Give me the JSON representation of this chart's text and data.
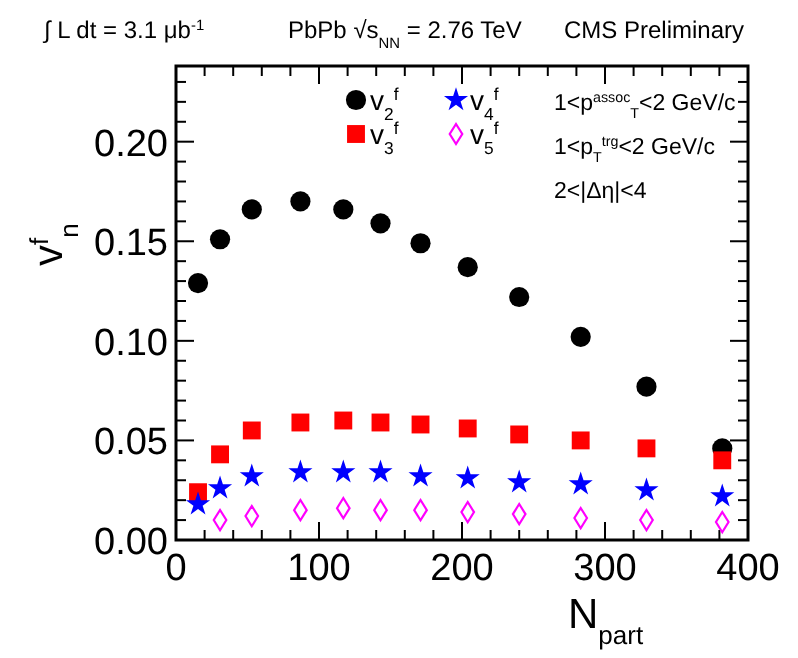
{
  "chart_data": {
    "type": "scatter",
    "xlabel": "N$_{part}$",
    "ylabel": "v$^{f}$$_{n}$",
    "x": [
      15.4,
      30.8,
      53,
      87,
      117,
      143,
      171,
      204,
      240,
      283,
      329,
      382
    ],
    "series": [
      {
        "name": "v$_{2}$$^{f}$",
        "color": "#000000",
        "marker": "circle",
        "values": [
          0.129,
          0.151,
          0.166,
          0.17,
          0.166,
          0.159,
          0.149,
          0.137,
          0.122,
          0.102,
          0.077,
          0.046
        ]
      },
      {
        "name": "v$_{3}$$^{f}$",
        "color": "#ff0000",
        "marker": "square",
        "values": [
          0.024,
          0.043,
          0.055,
          0.059,
          0.06,
          0.059,
          0.058,
          0.056,
          0.053,
          0.05,
          0.046,
          0.04
        ]
      },
      {
        "name": "v$_{4}$$^{f}$",
        "color": "#0000ff",
        "marker": "star",
        "values": [
          0.018,
          0.026,
          0.032,
          0.034,
          0.034,
          0.034,
          0.032,
          0.031,
          0.029,
          0.028,
          0.025,
          0.022
        ]
      },
      {
        "name": "v$_{5}$$^{f}$",
        "color": "#ff00ff",
        "marker": "diamond",
        "values": [
          null,
          0.01,
          0.012,
          0.015,
          0.016,
          0.015,
          0.015,
          0.014,
          0.013,
          0.011,
          0.01,
          0.009
        ]
      }
    ],
    "xlim": [
      0,
      400
    ],
    "xticks": [
      0,
      100,
      200,
      300,
      400
    ],
    "ylim": [
      0,
      0.238
    ],
    "yticks": [
      {
        "value": 0,
        "label": "0.00"
      },
      {
        "value": 0.05,
        "label": "0.05"
      },
      {
        "value": 0.1,
        "label": "0.10"
      },
      {
        "value": 0.15,
        "label": "0.15"
      },
      {
        "value": 0.2,
        "label": "0.20"
      }
    ],
    "legend": "top",
    "grid": false,
    "annotations": [
      "∫ L dt = 3.1 μb$^{-1}$",
      "PbPb √s$_{NN}$ = 2.76 TeV",
      "CMS Preliminary",
      "1<p$^{assoc}$$_{T}$<2 GeV/c",
      "1<p$_{T}$$^{trg}$<2 GeV/c",
      "2<|Δη|<4"
    ]
  }
}
